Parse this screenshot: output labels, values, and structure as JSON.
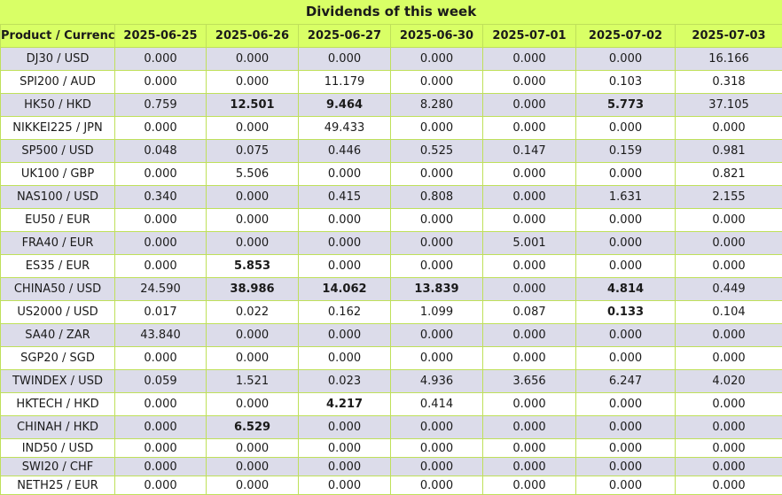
{
  "title": "Dividends of this week",
  "columns": [
    "Product / Currency",
    "2025-06-25",
    "2025-06-26",
    "2025-06-27",
    "2025-06-30",
    "2025-07-01",
    "2025-07-02",
    "2025-07-03"
  ],
  "rows": [
    {
      "product": "DJ30 / USD",
      "values": [
        "0.000",
        "0.000",
        "0.000",
        "0.000",
        "0.000",
        "0.000",
        "16.166"
      ],
      "bold": [
        false,
        false,
        false,
        false,
        false,
        false,
        false
      ]
    },
    {
      "product": "SPI200 / AUD",
      "values": [
        "0.000",
        "0.000",
        "11.179",
        "0.000",
        "0.000",
        "0.103",
        "0.318"
      ],
      "bold": [
        false,
        false,
        false,
        false,
        false,
        false,
        false
      ]
    },
    {
      "product": "HK50 / HKD",
      "values": [
        "0.759",
        "12.501",
        "9.464",
        "8.280",
        "0.000",
        "5.773",
        "37.105"
      ],
      "bold": [
        false,
        true,
        true,
        false,
        false,
        true,
        false
      ]
    },
    {
      "product": "NIKKEI225 / JPN",
      "values": [
        "0.000",
        "0.000",
        "49.433",
        "0.000",
        "0.000",
        "0.000",
        "0.000"
      ],
      "bold": [
        false,
        false,
        false,
        false,
        false,
        false,
        false
      ]
    },
    {
      "product": "SP500 / USD",
      "values": [
        "0.048",
        "0.075",
        "0.446",
        "0.525",
        "0.147",
        "0.159",
        "0.981"
      ],
      "bold": [
        false,
        false,
        false,
        false,
        false,
        false,
        false
      ]
    },
    {
      "product": "UK100 / GBP",
      "values": [
        "0.000",
        "5.506",
        "0.000",
        "0.000",
        "0.000",
        "0.000",
        "0.821"
      ],
      "bold": [
        false,
        false,
        false,
        false,
        false,
        false,
        false
      ]
    },
    {
      "product": "NAS100 / USD",
      "values": [
        "0.340",
        "0.000",
        "0.415",
        "0.808",
        "0.000",
        "1.631",
        "2.155"
      ],
      "bold": [
        false,
        false,
        false,
        false,
        false,
        false,
        false
      ]
    },
    {
      "product": "EU50 / EUR",
      "values": [
        "0.000",
        "0.000",
        "0.000",
        "0.000",
        "0.000",
        "0.000",
        "0.000"
      ],
      "bold": [
        false,
        false,
        false,
        false,
        false,
        false,
        false
      ]
    },
    {
      "product": "FRA40 / EUR",
      "values": [
        "0.000",
        "0.000",
        "0.000",
        "0.000",
        "5.001",
        "0.000",
        "0.000"
      ],
      "bold": [
        false,
        false,
        false,
        false,
        false,
        false,
        false
      ]
    },
    {
      "product": "ES35 / EUR",
      "values": [
        "0.000",
        "5.853",
        "0.000",
        "0.000",
        "0.000",
        "0.000",
        "0.000"
      ],
      "bold": [
        false,
        true,
        false,
        false,
        false,
        false,
        false
      ]
    },
    {
      "product": "CHINA50 / USD",
      "values": [
        "24.590",
        "38.986",
        "14.062",
        "13.839",
        "0.000",
        "4.814",
        "0.449"
      ],
      "bold": [
        false,
        true,
        true,
        true,
        false,
        true,
        false
      ]
    },
    {
      "product": "US2000 / USD",
      "values": [
        "0.017",
        "0.022",
        "0.162",
        "1.099",
        "0.087",
        "0.133",
        "0.104"
      ],
      "bold": [
        false,
        false,
        false,
        false,
        false,
        true,
        false
      ]
    },
    {
      "product": "SA40 / ZAR",
      "values": [
        "43.840",
        "0.000",
        "0.000",
        "0.000",
        "0.000",
        "0.000",
        "0.000"
      ],
      "bold": [
        false,
        false,
        false,
        false,
        false,
        false,
        false
      ]
    },
    {
      "product": "SGP20 / SGD",
      "values": [
        "0.000",
        "0.000",
        "0.000",
        "0.000",
        "0.000",
        "0.000",
        "0.000"
      ],
      "bold": [
        false,
        false,
        false,
        false,
        false,
        false,
        false
      ]
    },
    {
      "product": "TWINDEX / USD",
      "values": [
        "0.059",
        "1.521",
        "0.023",
        "4.936",
        "3.656",
        "6.247",
        "4.020"
      ],
      "bold": [
        false,
        false,
        false,
        false,
        false,
        false,
        false
      ]
    },
    {
      "product": "HKTECH / HKD",
      "values": [
        "0.000",
        "0.000",
        "4.217",
        "0.414",
        "0.000",
        "0.000",
        "0.000"
      ],
      "bold": [
        false,
        false,
        true,
        false,
        false,
        false,
        false
      ]
    },
    {
      "product": "CHINAH / HKD",
      "values": [
        "0.000",
        "6.529",
        "0.000",
        "0.000",
        "0.000",
        "0.000",
        "0.000"
      ],
      "bold": [
        false,
        true,
        false,
        false,
        false,
        false,
        false
      ]
    },
    {
      "product": "IND50 / USD",
      "values": [
        "0.000",
        "0.000",
        "0.000",
        "0.000",
        "0.000",
        "0.000",
        "0.000"
      ],
      "bold": [
        false,
        false,
        false,
        false,
        false,
        false,
        false
      ]
    },
    {
      "product": "SWI20 / CHF",
      "values": [
        "0.000",
        "0.000",
        "0.000",
        "0.000",
        "0.000",
        "0.000",
        "0.000"
      ],
      "bold": [
        false,
        false,
        false,
        false,
        false,
        false,
        false
      ]
    },
    {
      "product": "NETH25 / EUR",
      "values": [
        "0.000",
        "0.000",
        "0.000",
        "0.000",
        "0.000",
        "0.000",
        "0.000"
      ],
      "bold": [
        false,
        false,
        false,
        false,
        false,
        false,
        false
      ]
    }
  ]
}
